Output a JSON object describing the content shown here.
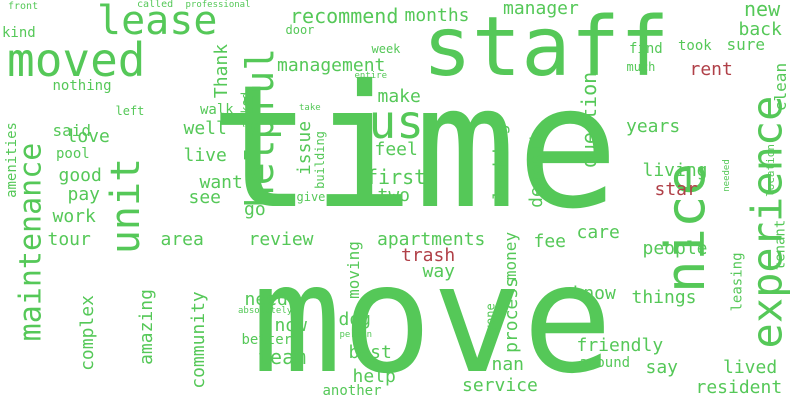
{
  "colors": {
    "primary": "#55c858",
    "secondary": "#b04048",
    "background": "#ffffff"
  },
  "words": [
    {
      "text": "move",
      "tone": "primary"
    },
    {
      "text": "time",
      "tone": "primary"
    },
    {
      "text": "staff",
      "tone": "primary"
    },
    {
      "text": "lease",
      "tone": "primary"
    },
    {
      "text": "moved",
      "tone": "primary"
    },
    {
      "text": "maintenance",
      "tone": "primary"
    },
    {
      "text": "experience",
      "tone": "primary"
    },
    {
      "text": "unit",
      "tone": "primary"
    },
    {
      "text": "helpful",
      "tone": "primary"
    },
    {
      "text": "nice",
      "tone": "primary"
    },
    {
      "text": "us",
      "tone": "primary"
    },
    {
      "text": "recommend",
      "tone": "primary"
    },
    {
      "text": "months",
      "tone": "primary"
    },
    {
      "text": "manager",
      "tone": "primary"
    },
    {
      "text": "new",
      "tone": "primary"
    },
    {
      "text": "back",
      "tone": "primary"
    },
    {
      "text": "sure",
      "tone": "primary"
    },
    {
      "text": "clean",
      "tone": "primary"
    },
    {
      "text": "rent",
      "tone": "secondary"
    },
    {
      "text": "took",
      "tone": "primary"
    },
    {
      "text": "find",
      "tone": "primary"
    },
    {
      "text": "much",
      "tone": "primary"
    },
    {
      "text": "management",
      "tone": "primary"
    },
    {
      "text": "Thank",
      "tone": "primary"
    },
    {
      "text": "door",
      "tone": "primary"
    },
    {
      "text": "week",
      "tone": "primary"
    },
    {
      "text": "entire",
      "tone": "primary"
    },
    {
      "text": "make",
      "tone": "primary"
    },
    {
      "text": "question",
      "tone": "primary"
    },
    {
      "text": "years",
      "tone": "primary"
    },
    {
      "text": "living",
      "tone": "primary"
    },
    {
      "text": "star",
      "tone": "secondary"
    },
    {
      "text": "feel",
      "tone": "primary"
    },
    {
      "text": "first",
      "tone": "primary"
    },
    {
      "text": "two",
      "tone": "primary"
    },
    {
      "text": "looking",
      "tone": "primary"
    },
    {
      "text": "deposit",
      "tone": "primary"
    },
    {
      "text": "issue",
      "tone": "primary"
    },
    {
      "text": "building",
      "tone": "primary"
    },
    {
      "text": "give",
      "tone": "primary"
    },
    {
      "text": "asked",
      "tone": "primary"
    },
    {
      "text": "take",
      "tone": "primary"
    },
    {
      "text": "walk",
      "tone": "primary"
    },
    {
      "text": "left",
      "tone": "primary"
    },
    {
      "text": "well",
      "tone": "primary"
    },
    {
      "text": "live",
      "tone": "primary"
    },
    {
      "text": "want",
      "tone": "primary"
    },
    {
      "text": "see",
      "tone": "primary"
    },
    {
      "text": "go",
      "tone": "primary"
    },
    {
      "text": "love",
      "tone": "primary"
    },
    {
      "text": "said",
      "tone": "primary"
    },
    {
      "text": "good",
      "tone": "primary"
    },
    {
      "text": "pay",
      "tone": "primary"
    },
    {
      "text": "pool",
      "tone": "primary"
    },
    {
      "text": "nothing",
      "tone": "primary"
    },
    {
      "text": "kind",
      "tone": "primary"
    },
    {
      "text": "front",
      "tone": "primary"
    },
    {
      "text": "called",
      "tone": "primary"
    },
    {
      "text": "professional",
      "tone": "primary"
    },
    {
      "text": "amenities",
      "tone": "primary"
    },
    {
      "text": "work",
      "tone": "primary"
    },
    {
      "text": "tour",
      "tone": "primary"
    },
    {
      "text": "area",
      "tone": "primary"
    },
    {
      "text": "review",
      "tone": "primary"
    },
    {
      "text": "apartments",
      "tone": "primary"
    },
    {
      "text": "trash",
      "tone": "secondary"
    },
    {
      "text": "way",
      "tone": "primary"
    },
    {
      "text": "fee",
      "tone": "primary"
    },
    {
      "text": "care",
      "tone": "primary"
    },
    {
      "text": "people",
      "tone": "primary"
    },
    {
      "text": "leasing",
      "tone": "primary"
    },
    {
      "text": "tenant",
      "tone": "primary"
    },
    {
      "text": "location",
      "tone": "primary"
    },
    {
      "text": "needed",
      "tone": "primary"
    },
    {
      "text": "money",
      "tone": "primary"
    },
    {
      "text": "moving",
      "tone": "primary"
    },
    {
      "text": "process",
      "tone": "primary"
    },
    {
      "text": "anyone",
      "tone": "primary"
    },
    {
      "text": "know",
      "tone": "primary"
    },
    {
      "text": "things",
      "tone": "primary"
    },
    {
      "text": "friendly",
      "tone": "primary"
    },
    {
      "text": "say",
      "tone": "primary"
    },
    {
      "text": "lived",
      "tone": "primary"
    },
    {
      "text": "resident",
      "tone": "primary"
    },
    {
      "text": "around",
      "tone": "primary"
    },
    {
      "text": "service",
      "tone": "primary"
    },
    {
      "text": "nan",
      "tone": "primary"
    },
    {
      "text": "help",
      "tone": "primary"
    },
    {
      "text": "another",
      "tone": "primary"
    },
    {
      "text": "best",
      "tone": "primary"
    },
    {
      "text": "person",
      "tone": "primary"
    },
    {
      "text": "dog",
      "tone": "primary"
    },
    {
      "text": "need",
      "tone": "primary"
    },
    {
      "text": "absolutely",
      "tone": "primary"
    },
    {
      "text": "now",
      "tone": "primary"
    },
    {
      "text": "better",
      "tone": "primary"
    },
    {
      "text": "team",
      "tone": "primary"
    },
    {
      "text": "community",
      "tone": "primary"
    },
    {
      "text": "amazing",
      "tone": "primary"
    },
    {
      "text": "complex",
      "tone": "primary"
    }
  ]
}
